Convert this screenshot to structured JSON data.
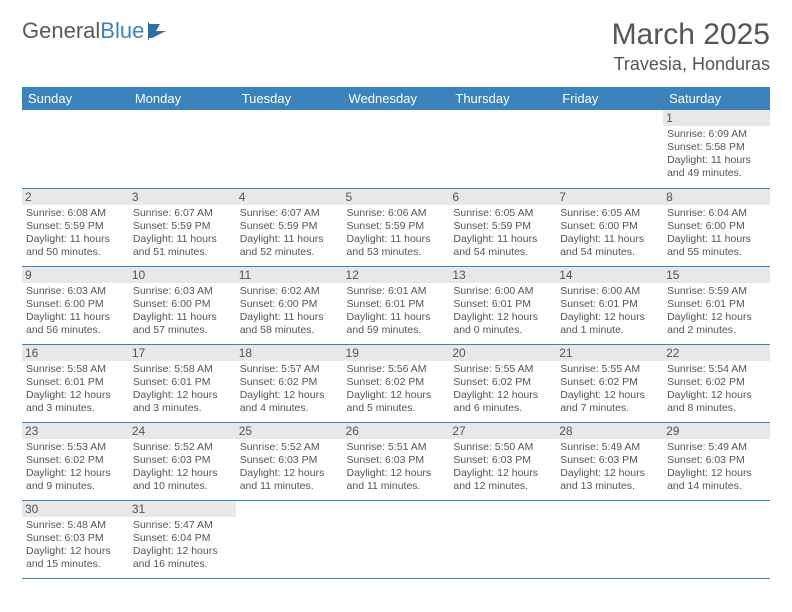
{
  "brand": {
    "part1": "General",
    "part2": "Blue"
  },
  "colors": {
    "accent": "#3b83bd",
    "text": "#555555",
    "daybg": "#e8e8e8",
    "border": "#3b83bd"
  },
  "title": "March 2025",
  "location": "Travesia, Honduras",
  "weekdays": [
    "Sunday",
    "Monday",
    "Tuesday",
    "Wednesday",
    "Thursday",
    "Friday",
    "Saturday"
  ],
  "layout": {
    "first_day_col": 6,
    "days_in_month": 31
  },
  "days": {
    "1": {
      "sunrise": "6:09 AM",
      "sunset": "5:58 PM",
      "daylight": "11 hours and 49 minutes."
    },
    "2": {
      "sunrise": "6:08 AM",
      "sunset": "5:59 PM",
      "daylight": "11 hours and 50 minutes."
    },
    "3": {
      "sunrise": "6:07 AM",
      "sunset": "5:59 PM",
      "daylight": "11 hours and 51 minutes."
    },
    "4": {
      "sunrise": "6:07 AM",
      "sunset": "5:59 PM",
      "daylight": "11 hours and 52 minutes."
    },
    "5": {
      "sunrise": "6:06 AM",
      "sunset": "5:59 PM",
      "daylight": "11 hours and 53 minutes."
    },
    "6": {
      "sunrise": "6:05 AM",
      "sunset": "5:59 PM",
      "daylight": "11 hours and 54 minutes."
    },
    "7": {
      "sunrise": "6:05 AM",
      "sunset": "6:00 PM",
      "daylight": "11 hours and 54 minutes."
    },
    "8": {
      "sunrise": "6:04 AM",
      "sunset": "6:00 PM",
      "daylight": "11 hours and 55 minutes."
    },
    "9": {
      "sunrise": "6:03 AM",
      "sunset": "6:00 PM",
      "daylight": "11 hours and 56 minutes."
    },
    "10": {
      "sunrise": "6:03 AM",
      "sunset": "6:00 PM",
      "daylight": "11 hours and 57 minutes."
    },
    "11": {
      "sunrise": "6:02 AM",
      "sunset": "6:00 PM",
      "daylight": "11 hours and 58 minutes."
    },
    "12": {
      "sunrise": "6:01 AM",
      "sunset": "6:01 PM",
      "daylight": "11 hours and 59 minutes."
    },
    "13": {
      "sunrise": "6:00 AM",
      "sunset": "6:01 PM",
      "daylight": "12 hours and 0 minutes."
    },
    "14": {
      "sunrise": "6:00 AM",
      "sunset": "6:01 PM",
      "daylight": "12 hours and 1 minute."
    },
    "15": {
      "sunrise": "5:59 AM",
      "sunset": "6:01 PM",
      "daylight": "12 hours and 2 minutes."
    },
    "16": {
      "sunrise": "5:58 AM",
      "sunset": "6:01 PM",
      "daylight": "12 hours and 3 minutes."
    },
    "17": {
      "sunrise": "5:58 AM",
      "sunset": "6:01 PM",
      "daylight": "12 hours and 3 minutes."
    },
    "18": {
      "sunrise": "5:57 AM",
      "sunset": "6:02 PM",
      "daylight": "12 hours and 4 minutes."
    },
    "19": {
      "sunrise": "5:56 AM",
      "sunset": "6:02 PM",
      "daylight": "12 hours and 5 minutes."
    },
    "20": {
      "sunrise": "5:55 AM",
      "sunset": "6:02 PM",
      "daylight": "12 hours and 6 minutes."
    },
    "21": {
      "sunrise": "5:55 AM",
      "sunset": "6:02 PM",
      "daylight": "12 hours and 7 minutes."
    },
    "22": {
      "sunrise": "5:54 AM",
      "sunset": "6:02 PM",
      "daylight": "12 hours and 8 minutes."
    },
    "23": {
      "sunrise": "5:53 AM",
      "sunset": "6:02 PM",
      "daylight": "12 hours and 9 minutes."
    },
    "24": {
      "sunrise": "5:52 AM",
      "sunset": "6:03 PM",
      "daylight": "12 hours and 10 minutes."
    },
    "25": {
      "sunrise": "5:52 AM",
      "sunset": "6:03 PM",
      "daylight": "12 hours and 11 minutes."
    },
    "26": {
      "sunrise": "5:51 AM",
      "sunset": "6:03 PM",
      "daylight": "12 hours and 11 minutes."
    },
    "27": {
      "sunrise": "5:50 AM",
      "sunset": "6:03 PM",
      "daylight": "12 hours and 12 minutes."
    },
    "28": {
      "sunrise": "5:49 AM",
      "sunset": "6:03 PM",
      "daylight": "12 hours and 13 minutes."
    },
    "29": {
      "sunrise": "5:49 AM",
      "sunset": "6:03 PM",
      "daylight": "12 hours and 14 minutes."
    },
    "30": {
      "sunrise": "5:48 AM",
      "sunset": "6:03 PM",
      "daylight": "12 hours and 15 minutes."
    },
    "31": {
      "sunrise": "5:47 AM",
      "sunset": "6:04 PM",
      "daylight": "12 hours and 16 minutes."
    }
  }
}
